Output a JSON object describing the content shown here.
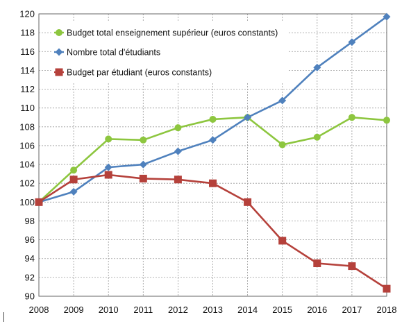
{
  "chart_data": {
    "type": "line",
    "title": "",
    "xlabel": "",
    "ylabel": "",
    "x": [
      "2008",
      "2009",
      "2010",
      "2011",
      "2012",
      "2013",
      "2014",
      "2015",
      "2016",
      "2017",
      "2018"
    ],
    "ylim": [
      90,
      120
    ],
    "yticks": [
      "90",
      "92",
      "94",
      "96",
      "98",
      "100",
      "102",
      "104",
      "106",
      "108",
      "110",
      "112",
      "114",
      "116",
      "118",
      "120"
    ],
    "grid": "dotted horizontal and vertical",
    "legend_position": "top-left",
    "series": [
      {
        "name": "Budget total enseignement supérieur (euros constants)",
        "color": "#8dc63f",
        "marker": "circle",
        "values": [
          100,
          103.4,
          106.7,
          106.6,
          107.9,
          108.8,
          109.0,
          106.1,
          106.9,
          109.0,
          108.7
        ]
      },
      {
        "name": "Nombre total d'étudiants",
        "color": "#4f81bd",
        "marker": "diamond",
        "values": [
          100,
          101.1,
          103.7,
          104.0,
          105.4,
          106.6,
          109.0,
          110.8,
          114.3,
          117.0,
          119.7
        ]
      },
      {
        "name": "Budget par étudiant (euros constants)",
        "color": "#b5413b",
        "marker": "square",
        "values": [
          100,
          102.4,
          102.9,
          102.5,
          102.4,
          102.0,
          100.0,
          95.9,
          93.5,
          93.2,
          90.8
        ]
      }
    ]
  }
}
